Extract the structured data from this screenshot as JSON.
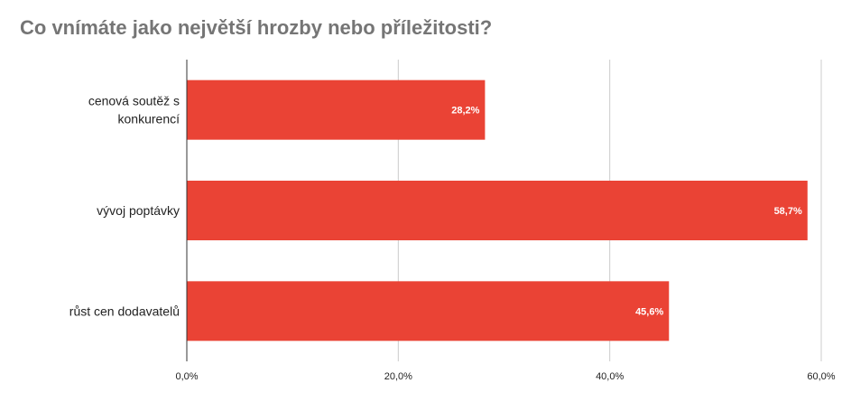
{
  "chart_data": {
    "type": "bar",
    "orientation": "horizontal",
    "title": "Co vnímáte jako největší hrozby nebo příležitosti?",
    "categories": [
      [
        "cenová soutěž s",
        "konkurencí"
      ],
      [
        "vývoj poptávky"
      ],
      [
        "růst cen dodavatelů"
      ]
    ],
    "values": [
      28.2,
      58.7,
      45.6
    ],
    "data_labels": [
      "28,2%",
      "58,7%",
      "45,6%"
    ],
    "xlim": [
      0,
      60
    ],
    "ticks": [
      0,
      20,
      40,
      60
    ],
    "tick_labels": [
      "0,0%",
      "20,0%",
      "40,0%",
      "60,0%"
    ],
    "xlabel": "",
    "ylabel": "",
    "grid": true,
    "bar_color": "#ea4335",
    "grid_color": "#cccccc",
    "axis_color": "#333333"
  }
}
